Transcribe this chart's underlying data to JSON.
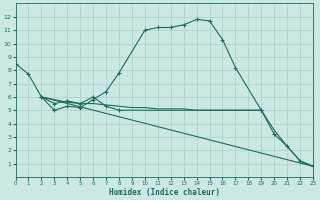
{
  "bg_color": "#cce8e4",
  "grid_color": "#aacfca",
  "line_color": "#1b6b60",
  "xlabel": "Humidex (Indice chaleur)",
  "xlim": [
    0,
    23
  ],
  "ylim": [
    0,
    13
  ],
  "xticks": [
    0,
    1,
    2,
    3,
    4,
    5,
    6,
    7,
    8,
    9,
    10,
    11,
    12,
    13,
    14,
    15,
    16,
    17,
    18,
    19,
    20,
    21,
    22,
    23
  ],
  "yticks": [
    1,
    2,
    3,
    4,
    5,
    6,
    7,
    8,
    9,
    10,
    11,
    12
  ],
  "series1": {
    "x": [
      0,
      1,
      2,
      3,
      4,
      5,
      6,
      7,
      8,
      10,
      11,
      12,
      13,
      14,
      15,
      16,
      17,
      19
    ],
    "y": [
      8.5,
      7.7,
      6.0,
      5.0,
      5.3,
      5.2,
      5.8,
      6.4,
      7.8,
      11.0,
      11.2,
      11.2,
      11.4,
      11.8,
      11.7,
      10.3,
      8.2,
      5.0
    ]
  },
  "series2": {
    "x": [
      2,
      3,
      4,
      5,
      6,
      7,
      8,
      19,
      20,
      21,
      22,
      23
    ],
    "y": [
      6.0,
      5.5,
      5.7,
      5.5,
      6.0,
      5.3,
      5.0,
      5.0,
      3.2,
      2.3,
      1.2,
      0.8
    ]
  },
  "series3": {
    "x": [
      2,
      3,
      4,
      5,
      6,
      7,
      8,
      9,
      10,
      11,
      12,
      13,
      14,
      15,
      16,
      17,
      18,
      19,
      20,
      21,
      22,
      23
    ],
    "y": [
      6.0,
      5.8,
      5.6,
      5.5,
      5.5,
      5.4,
      5.3,
      5.2,
      5.2,
      5.1,
      5.1,
      5.1,
      5.0,
      5.0,
      5.0,
      5.0,
      5.0,
      5.0,
      3.5,
      2.3,
      1.2,
      0.8
    ]
  },
  "series4": {
    "x": [
      2,
      23
    ],
    "y": [
      6.0,
      0.8
    ]
  }
}
